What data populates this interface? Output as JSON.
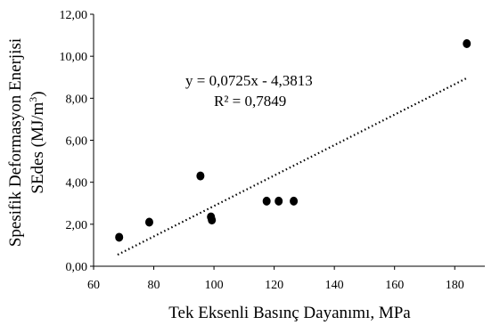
{
  "chart_data": {
    "type": "scatter",
    "xlabel": "Tek Eksenli Basınç Dayanımı, MPa",
    "ylabel_line1": "Spesifik Deformasyon Enerjisi",
    "ylabel_line2": "SEdes (MJ/m",
    "ylabel_sup": "3",
    "ylabel_close": ")",
    "xlim": [
      60,
      190
    ],
    "ylim": [
      0,
      12
    ],
    "xticks": [
      60,
      80,
      100,
      120,
      140,
      160,
      180
    ],
    "yticks": [
      "0,00",
      "2,00",
      "4,00",
      "6,00",
      "8,00",
      "10,00",
      "12,00"
    ],
    "xtick_labels": [
      "60",
      "80",
      "100",
      "120",
      "140",
      "160",
      "180"
    ],
    "points": [
      {
        "x": 68.5,
        "y": 1.38
      },
      {
        "x": 78.5,
        "y": 2.1
      },
      {
        "x": 95.5,
        "y": 4.3
      },
      {
        "x": 99.0,
        "y": 2.35
      },
      {
        "x": 99.3,
        "y": 2.2
      },
      {
        "x": 117.5,
        "y": 3.1
      },
      {
        "x": 121.5,
        "y": 3.1
      },
      {
        "x": 126.5,
        "y": 3.1
      },
      {
        "x": 184.0,
        "y": 10.6
      }
    ],
    "trendline": {
      "slope": 0.0725,
      "intercept": -4.3813,
      "x_range": [
        68,
        184
      ]
    },
    "equation": "y = 0,0725x - 4,3813",
    "r2_label": "R² = 0,7849",
    "grid": false,
    "legend": false
  }
}
